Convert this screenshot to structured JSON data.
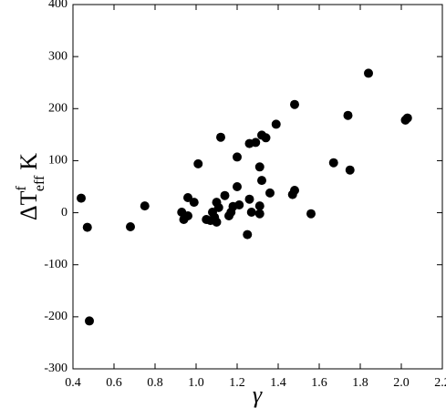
{
  "chart_data": {
    "type": "scatter",
    "xlabel": "γ",
    "ylabel": {
      "base": "ΔT",
      "sup": "f",
      "sub": "eff",
      "unit": "K"
    },
    "x": [
      0.44,
      0.47,
      0.48,
      0.68,
      0.75,
      0.93,
      0.94,
      0.96,
      0.96,
      0.99,
      1.01,
      1.05,
      1.07,
      1.08,
      1.09,
      1.1,
      1.1,
      1.11,
      1.12,
      1.14,
      1.16,
      1.17,
      1.18,
      1.2,
      1.2,
      1.21,
      1.25,
      1.26,
      1.26,
      1.27,
      1.29,
      1.31,
      1.31,
      1.31,
      1.32,
      1.32,
      1.34,
      1.36,
      1.39,
      1.47,
      1.48,
      1.48,
      1.56,
      1.67,
      1.74,
      1.75,
      1.84,
      2.02,
      2.03
    ],
    "values": [
      28,
      -28,
      -208,
      -27,
      13,
      1,
      -13,
      -6,
      29,
      20,
      94,
      -13,
      -15,
      1,
      -9,
      -18,
      20,
      10,
      145,
      33,
      -6,
      1,
      12,
      107,
      50,
      15,
      -42,
      133,
      26,
      1,
      135,
      -2,
      88,
      13,
      62,
      149,
      144,
      38,
      170,
      35,
      43,
      208,
      -2,
      96,
      187,
      82,
      268,
      178,
      182
    ],
    "color": "#000000",
    "xlim": [
      0.4,
      2.2
    ],
    "xticks": [
      0.4,
      0.6,
      0.8,
      {
        "value": 1,
        "label": "1.0"
      },
      1.2,
      1.4,
      1.6,
      1.8,
      {
        "value": 2,
        "label": "2.0"
      },
      2.2
    ],
    "ylim": [
      -300,
      400
    ],
    "yticks": [
      -300,
      -200,
      -100,
      0,
      100,
      200,
      300,
      400
    ]
  }
}
